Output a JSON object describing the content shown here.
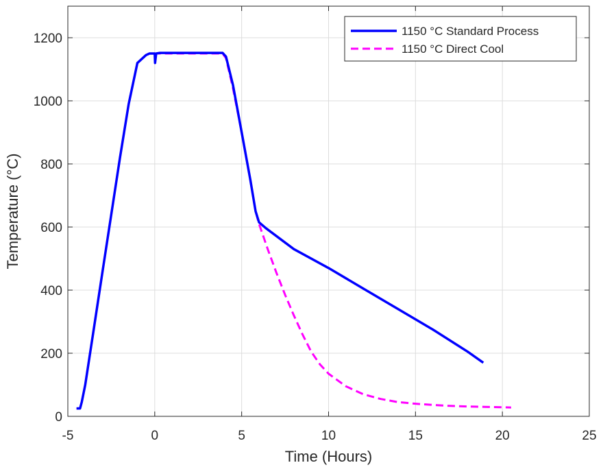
{
  "chart_data": {
    "type": "line",
    "title": "",
    "xlabel": "Time (Hours)",
    "ylabel": "Temperature (°C)",
    "xlim": [
      -5,
      25
    ],
    "ylim": [
      0,
      1300
    ],
    "xticks": [
      -5,
      0,
      5,
      10,
      15,
      20,
      25
    ],
    "yticks": [
      0,
      200,
      400,
      600,
      800,
      1000,
      1200
    ],
    "grid": true,
    "legend_position": "top-right",
    "series": [
      {
        "name": "1150 °C Standard Process",
        "color": "#0000ff",
        "style": "solid",
        "points": [
          [
            -4.5,
            25
          ],
          [
            -4.3,
            25
          ],
          [
            -4.2,
            45
          ],
          [
            -4.0,
            100
          ],
          [
            -3.5,
            280
          ],
          [
            -3.0,
            460
          ],
          [
            -2.5,
            640
          ],
          [
            -2.0,
            820
          ],
          [
            -1.5,
            990
          ],
          [
            -1.0,
            1120
          ],
          [
            -0.5,
            1145
          ],
          [
            -0.3,
            1150
          ],
          [
            -0.1,
            1150
          ],
          [
            0.0,
            1150
          ],
          [
            0.02,
            1120
          ],
          [
            0.08,
            1150
          ],
          [
            0.3,
            1152
          ],
          [
            1.0,
            1152
          ],
          [
            2.0,
            1152
          ],
          [
            3.0,
            1152
          ],
          [
            3.9,
            1152
          ],
          [
            4.1,
            1140
          ],
          [
            4.5,
            1050
          ],
          [
            5.0,
            900
          ],
          [
            5.5,
            750
          ],
          [
            5.8,
            650
          ],
          [
            6.0,
            615
          ],
          [
            6.4,
            596
          ],
          [
            8.0,
            530
          ],
          [
            10.0,
            470
          ],
          [
            12.0,
            405
          ],
          [
            14.0,
            340
          ],
          [
            16.0,
            275
          ],
          [
            18.0,
            205
          ],
          [
            18.9,
            170
          ]
        ]
      },
      {
        "name": "1150 °C Direct Cool",
        "color": "#ff00ff",
        "style": "dashed",
        "points": [
          [
            -4.5,
            25
          ],
          [
            -4.3,
            25
          ],
          [
            -4.2,
            45
          ],
          [
            -4.0,
            100
          ],
          [
            -3.5,
            280
          ],
          [
            -3.0,
            460
          ],
          [
            -2.5,
            640
          ],
          [
            -2.0,
            820
          ],
          [
            -1.5,
            990
          ],
          [
            -1.0,
            1120
          ],
          [
            -0.5,
            1145
          ],
          [
            -0.3,
            1150
          ],
          [
            0.0,
            1150
          ],
          [
            0.3,
            1150
          ],
          [
            1.0,
            1150
          ],
          [
            2.0,
            1150
          ],
          [
            3.0,
            1150
          ],
          [
            3.9,
            1150
          ],
          [
            4.1,
            1135
          ],
          [
            4.5,
            1040
          ],
          [
            5.0,
            900
          ],
          [
            5.5,
            750
          ],
          [
            5.8,
            650
          ],
          [
            6.0,
            610
          ],
          [
            6.5,
            530
          ],
          [
            7.0,
            455
          ],
          [
            7.5,
            385
          ],
          [
            8.0,
            320
          ],
          [
            8.5,
            260
          ],
          [
            9.0,
            205
          ],
          [
            9.5,
            165
          ],
          [
            10.0,
            135
          ],
          [
            11.0,
            95
          ],
          [
            12.0,
            70
          ],
          [
            13.0,
            55
          ],
          [
            14.0,
            45
          ],
          [
            15.0,
            40
          ],
          [
            16.0,
            36
          ],
          [
            17.0,
            33
          ],
          [
            18.0,
            31
          ],
          [
            19.0,
            30
          ],
          [
            20.5,
            28
          ]
        ]
      }
    ]
  }
}
